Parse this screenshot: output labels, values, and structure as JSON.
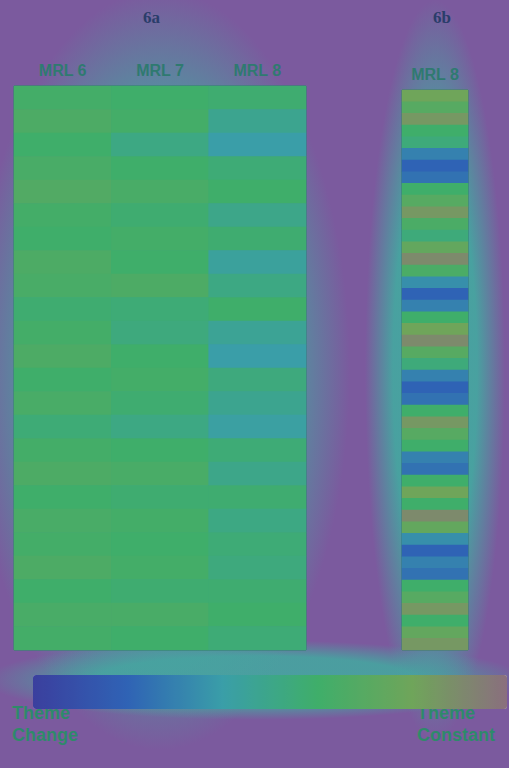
{
  "chart_data": {
    "type": "heatmap",
    "panels": [
      {
        "title": "6a",
        "columns": [
          "MRL 6",
          "MRL 7",
          "MRL 8"
        ],
        "values": [
          [
            0.62,
            0.66,
            0.6,
            0.64,
            0.68,
            0.62,
            0.6,
            0.66,
            0.64,
            0.58,
            0.62,
            0.66,
            0.6,
            0.64,
            0.56,
            0.62,
            0.66,
            0.6,
            0.64,
            0.62,
            0.66,
            0.6,
            0.64,
            0.62
          ],
          [
            0.6,
            0.62,
            0.52,
            0.6,
            0.64,
            0.58,
            0.62,
            0.6,
            0.66,
            0.56,
            0.54,
            0.6,
            0.62,
            0.58,
            0.52,
            0.6,
            0.64,
            0.58,
            0.62,
            0.6,
            0.62,
            0.58,
            0.64,
            0.6
          ],
          [
            0.58,
            0.48,
            0.4,
            0.56,
            0.6,
            0.5,
            0.58,
            0.44,
            0.52,
            0.6,
            0.46,
            0.4,
            0.54,
            0.48,
            0.42,
            0.56,
            0.5,
            0.58,
            0.52,
            0.56,
            0.54,
            0.58,
            0.6,
            0.56
          ]
        ]
      },
      {
        "title": "6b",
        "columns": [
          "MRL 8"
        ],
        "values": [
          [
            0.8,
            0.7,
            0.85,
            0.6,
            0.55,
            0.3,
            0.2,
            0.25,
            0.6,
            0.7,
            0.85,
            0.65,
            0.55,
            0.75,
            0.9,
            0.65,
            0.35,
            0.2,
            0.3,
            0.6,
            0.8,
            0.9,
            0.7,
            0.55,
            0.3,
            0.2,
            0.25,
            0.6,
            0.85,
            0.7,
            0.6,
            0.3,
            0.25,
            0.6,
            0.8,
            0.6,
            0.9,
            0.75,
            0.35,
            0.2,
            0.3,
            0.25,
            0.6,
            0.7,
            0.85,
            0.6,
            0.75,
            0.85
          ]
        ]
      }
    ],
    "colorbar": {
      "range": [
        0,
        1
      ],
      "labels": [
        "Theme Change",
        "Theme Constant"
      ]
    },
    "tick_labels": "x"
  }
}
